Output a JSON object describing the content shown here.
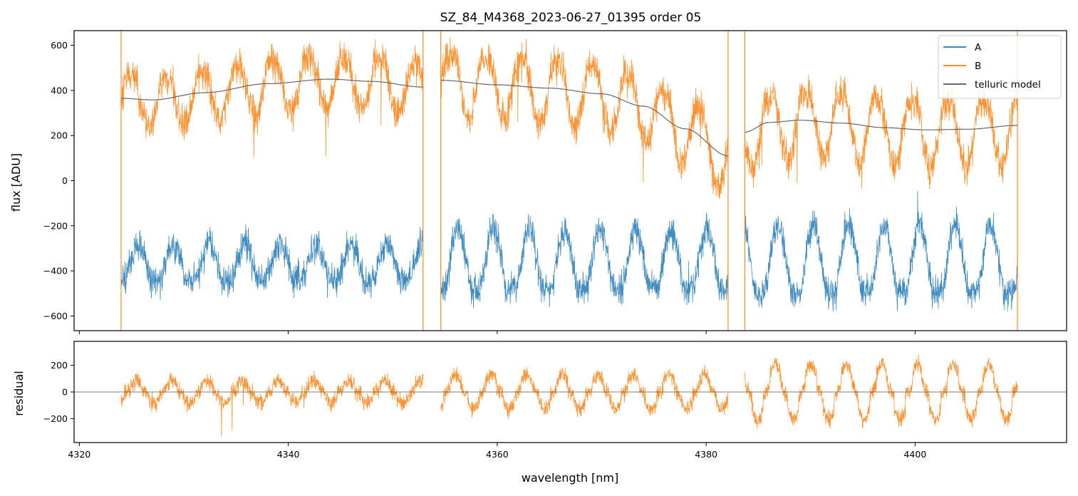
{
  "chart_data": [
    {
      "type": "line",
      "title": "SZ_84_M4368_2023-06-27_01395  order 05",
      "xlabel": "",
      "ylabel": "flux [ADU]",
      "xlim": [
        4319.5,
        4414.5
      ],
      "ylim": [
        -665,
        665
      ],
      "x_ticks": [
        4320,
        4340,
        4360,
        4380,
        4400
      ],
      "x_tick_labels_shown": false,
      "y_ticks": [
        -600,
        -400,
        -200,
        0,
        200,
        400,
        600
      ],
      "y_tick_labels": [
        "−600",
        "−400",
        "−200",
        "0",
        "200",
        "400",
        "600"
      ],
      "legend": {
        "position": "top-right",
        "entries": [
          "A",
          "B",
          "telluric model"
        ]
      },
      "x_range_data": [
        4324.0,
        4409.8
      ],
      "gaps": [
        [
          4352.9,
          4354.6
        ],
        [
          4382.1,
          4383.7
        ]
      ],
      "series": [
        {
          "name": "A",
          "color": "#1f77b4",
          "style": "noisy-spectrum",
          "baseline": -380,
          "noise_amplitude": 70,
          "oscillation_period_nm": 3.4,
          "oscillation_amplitude_by_region": [
            [
              4324,
              4353,
              90
            ],
            [
              4354.6,
              4382,
              150
            ],
            [
              4383.7,
              4410,
              170
            ]
          ]
        },
        {
          "name": "B",
          "color": "#ff7f0e",
          "style": "noisy-spectrum",
          "follows": "telluric model",
          "noise_amplitude": 75,
          "oscillation_period_nm": 3.4,
          "oscillation_amplitude_by_region": [
            [
              4324,
              4353,
              130
            ],
            [
              4354.6,
              4382,
              160
            ],
            [
              4383.7,
              4410,
              170
            ]
          ]
        },
        {
          "name": "telluric model",
          "color": "#555555",
          "style": "smooth",
          "segments": [
            {
              "x": [
                4324,
                4327,
                4332,
                4338,
                4344,
                4348,
                4352.9
              ],
              "y": [
                365,
                358,
                390,
                430,
                450,
                440,
                415
              ]
            },
            {
              "x": [
                4354.6,
                4360,
                4365,
                4370,
                4374,
                4378,
                4382.1
              ],
              "y": [
                445,
                425,
                410,
                385,
                330,
                230,
                110
              ]
            },
            {
              "x": [
                4383.7,
                4386,
                4389,
                4393,
                4397,
                4401,
                4405,
                4409.8
              ],
              "y": [
                215,
                258,
                268,
                255,
                235,
                225,
                228,
                245
              ]
            }
          ]
        }
      ]
    },
    {
      "type": "line",
      "title": "",
      "xlabel": "wavelength [nm]",
      "ylabel": "residual",
      "xlim": [
        4319.5,
        4414.5
      ],
      "ylim": [
        -380,
        380
      ],
      "x_ticks": [
        4320,
        4340,
        4360,
        4380,
        4400
      ],
      "x_tick_labels": [
        "4320",
        "4340",
        "4360",
        "4380",
        "4400"
      ],
      "y_ticks": [
        -200,
        0,
        200
      ],
      "y_tick_labels": [
        "−200",
        "0",
        "200"
      ],
      "reference_line": {
        "y": 0,
        "color": "#555555"
      },
      "series": [
        {
          "name": "residual",
          "color": "#ff7f0e",
          "style": "noisy-spectrum",
          "baseline": 0,
          "noise_amplitude": 60,
          "oscillation_period_nm": 3.4,
          "oscillation_amplitude_by_region": [
            [
              4324,
              4353,
              80
            ],
            [
              4354.6,
              4382,
              130
            ],
            [
              4383.7,
              4410,
              210
            ]
          ]
        }
      ]
    }
  ]
}
